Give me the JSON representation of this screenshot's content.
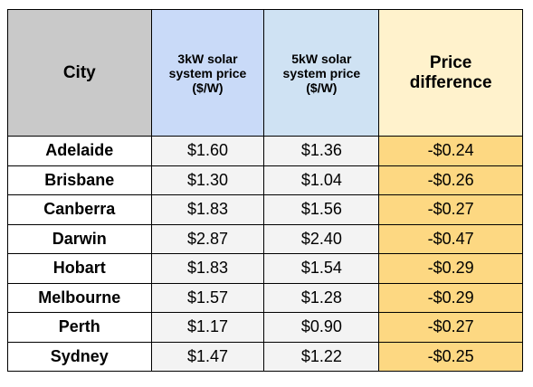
{
  "table": {
    "header": [
      "City",
      "3kW solar system price ($/W)",
      "5kW solar system price ($/W)",
      "Price difference"
    ],
    "rows": [
      [
        "Adelaide",
        "$1.60",
        "$1.36",
        "-$0.24"
      ],
      [
        "Brisbane",
        "$1.30",
        "$1.04",
        "-$0.26"
      ],
      [
        "Canberra",
        "$1.83",
        "$1.56",
        "-$0.27"
      ],
      [
        "Darwin",
        "$2.87",
        "$2.40",
        "-$0.47"
      ],
      [
        "Hobart",
        "$1.83",
        "$1.54",
        "-$0.29"
      ],
      [
        "Melbourne",
        "$1.57",
        "$1.28",
        "-$0.29"
      ],
      [
        "Perth",
        "$1.17",
        "$0.90",
        "-$0.27"
      ],
      [
        "Sydney",
        "$1.47",
        "$1.22",
        "-$0.25"
      ]
    ]
  }
}
